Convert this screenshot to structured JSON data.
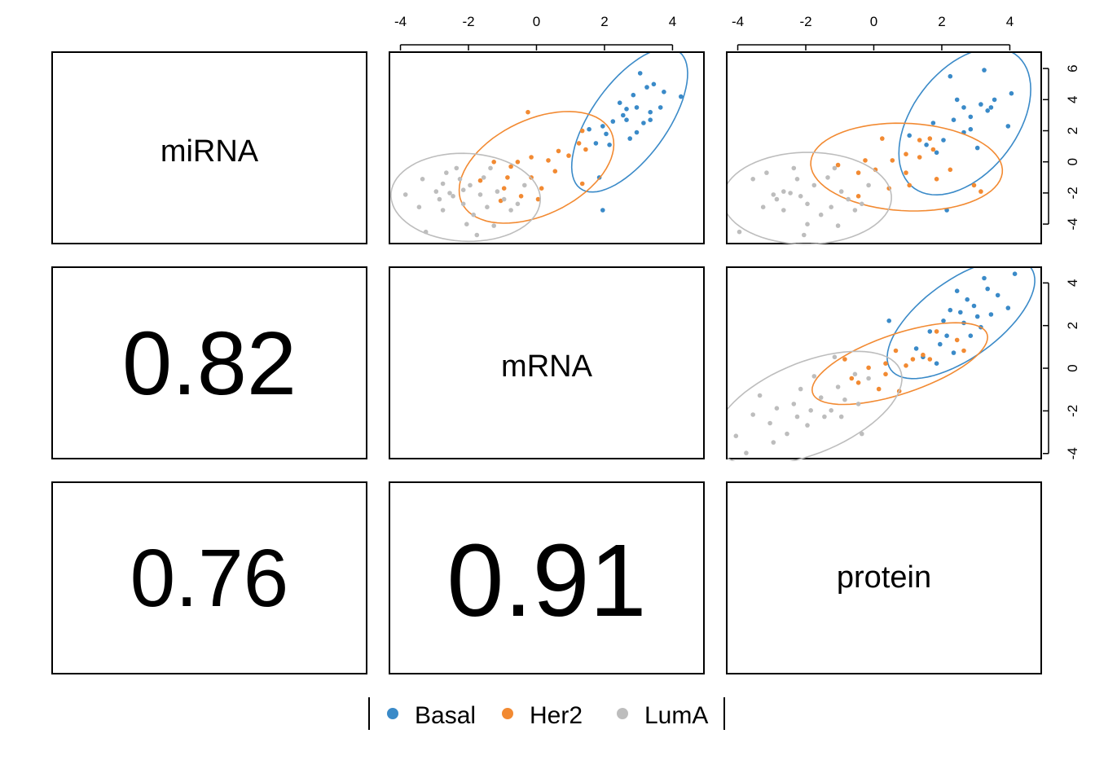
{
  "labels": {
    "mirna": "miRNA",
    "mrna": "mRNA",
    "protein": "protein"
  },
  "correlations": {
    "mirna_mrna": "0.82",
    "mirna_protein": "0.76",
    "mrna_protein": "0.91"
  },
  "legend": {
    "items": [
      {
        "name": "Basal",
        "color": "#3a8ac8"
      },
      {
        "name": "Her2",
        "color": "#f28a32"
      },
      {
        "name": "LumA",
        "color": "#bdbdbd"
      }
    ]
  },
  "chart_data": {
    "type": "scatter",
    "variables": [
      "miRNA",
      "mRNA",
      "protein"
    ],
    "groups": [
      "Basal",
      "Her2",
      "LumA"
    ],
    "group_colors": {
      "Basal": "#3a8ac8",
      "Her2": "#f28a32",
      "LumA": "#bdbdbd"
    },
    "axes": {
      "top_x_ticks": [
        "-4",
        "-2",
        "0",
        "2",
        "4"
      ],
      "right_y_ticks_row1": [
        "6",
        "4",
        "2",
        "0",
        "-2",
        "-4"
      ],
      "right_y_ticks_row2": [
        "4",
        "2",
        "0",
        "-2",
        "-4"
      ],
      "x_range": [
        -4.3,
        4.9
      ],
      "y_range_miRNA": [
        -5.2,
        7.0
      ],
      "y_range_mRNA": [
        -4.2,
        4.7
      ]
    },
    "panels": [
      {
        "x_var": "mRNA",
        "y_var": "miRNA",
        "series": [
          {
            "name": "Basal",
            "points": [
              [
                2.4,
                3.9
              ],
              [
                3.0,
                5.8
              ],
              [
                3.4,
                5.1
              ],
              [
                4.2,
                4.3
              ],
              [
                3.7,
                4.6
              ],
              [
                2.8,
                4.4
              ],
              [
                3.3,
                3.3
              ],
              [
                2.6,
                3.5
              ],
              [
                2.2,
                2.7
              ],
              [
                1.9,
                2.4
              ],
              [
                2.6,
                2.8
              ],
              [
                3.1,
                2.6
              ],
              [
                2.0,
                1.9
              ],
              [
                1.5,
                2.2
              ],
              [
                2.9,
                2.0
              ],
              [
                1.7,
                1.3
              ],
              [
                2.7,
                1.6
              ],
              [
                3.3,
                2.8
              ],
              [
                1.8,
                -0.9
              ],
              [
                1.9,
                -3.0
              ],
              [
                3.6,
                3.6
              ],
              [
                2.5,
                3.1
              ],
              [
                3.2,
                4.9
              ],
              [
                2.9,
                3.6
              ],
              [
                2.1,
                1.2
              ]
            ]
          },
          {
            "name": "Her2",
            "points": [
              [
                -0.3,
                3.3
              ],
              [
                1.3,
                2.1
              ],
              [
                1.2,
                1.3
              ],
              [
                0.6,
                0.8
              ],
              [
                0.3,
                0.2
              ],
              [
                0.9,
                0.5
              ],
              [
                -0.2,
                0.4
              ],
              [
                -0.6,
                0.1
              ],
              [
                -0.8,
                -0.2
              ],
              [
                -1.3,
                0.1
              ],
              [
                -0.2,
                -0.9
              ],
              [
                0.1,
                -1.6
              ],
              [
                0.5,
                -0.5
              ],
              [
                1.3,
                -1.3
              ],
              [
                -1.0,
                -1.6
              ],
              [
                -0.5,
                -2.1
              ],
              [
                0.0,
                -2.3
              ],
              [
                -1.7,
                -1.1
              ],
              [
                -0.9,
                -0.9
              ],
              [
                1.4,
                0.9
              ],
              [
                -1.1,
                -2.4
              ]
            ]
          },
          {
            "name": "LumA",
            "points": [
              [
                -2.7,
                -0.6
              ],
              [
                -3.4,
                -1.0
              ],
              [
                -3.0,
                -1.8
              ],
              [
                -2.5,
                -2.1
              ],
              [
                -2.0,
                -1.4
              ],
              [
                -1.6,
                -0.9
              ],
              [
                -2.2,
                -2.6
              ],
              [
                -1.9,
                -3.3
              ],
              [
                -1.5,
                -2.8
              ],
              [
                -2.8,
                -3.0
              ],
              [
                -3.3,
                -4.4
              ],
              [
                -1.8,
                -4.6
              ],
              [
                -3.9,
                -2.0
              ],
              [
                -2.3,
                -1.0
              ],
              [
                -1.2,
                -1.8
              ],
              [
                -1.0,
                -2.3
              ],
              [
                -0.6,
                -2.6
              ],
              [
                -0.4,
                -1.4
              ],
              [
                -2.6,
                -1.9
              ],
              [
                -2.9,
                -2.3
              ],
              [
                -1.4,
                -0.3
              ],
              [
                -2.1,
                -3.9
              ],
              [
                -1.3,
                -4.0
              ],
              [
                -0.8,
                -3.0
              ],
              [
                -2.4,
                -0.3
              ],
              [
                -3.5,
                -2.8
              ],
              [
                -1.7,
                -2.0
              ],
              [
                -2.8,
                -1.3
              ],
              [
                -2.2,
                -1.7
              ]
            ]
          }
        ]
      },
      {
        "x_var": "protein",
        "y_var": "miRNA",
        "series": [
          {
            "name": "Basal",
            "points": [
              [
                2.2,
                5.6
              ],
              [
                3.2,
                6.0
              ],
              [
                4.0,
                4.5
              ],
              [
                3.5,
                4.1
              ],
              [
                3.1,
                3.8
              ],
              [
                2.6,
                3.6
              ],
              [
                2.8,
                3.0
              ],
              [
                3.3,
                3.4
              ],
              [
                2.3,
                2.8
              ],
              [
                1.7,
                2.6
              ],
              [
                2.0,
                1.5
              ],
              [
                1.5,
                1.2
              ],
              [
                2.6,
                2.0
              ],
              [
                3.0,
                1.0
              ],
              [
                3.9,
                2.4
              ],
              [
                1.0,
                1.8
              ],
              [
                2.1,
                -3.0
              ],
              [
                2.4,
                4.1
              ],
              [
                3.4,
                3.6
              ],
              [
                2.8,
                2.2
              ],
              [
                1.8,
                0.7
              ]
            ]
          },
          {
            "name": "Her2",
            "points": [
              [
                0.2,
                1.6
              ],
              [
                1.3,
                1.5
              ],
              [
                1.7,
                0.9
              ],
              [
                0.9,
                0.6
              ],
              [
                0.5,
                0.2
              ],
              [
                -0.3,
                0.2
              ],
              [
                -0.5,
                -0.6
              ],
              [
                -1.1,
                -0.1
              ],
              [
                0.9,
                -0.6
              ],
              [
                1.8,
                -1.0
              ],
              [
                2.9,
                -1.4
              ],
              [
                3.1,
                -1.8
              ],
              [
                0.4,
                -1.6
              ],
              [
                -0.5,
                -2.1
              ],
              [
                1.3,
                0.4
              ],
              [
                2.2,
                -0.4
              ],
              [
                1.6,
                1.6
              ],
              [
                0.0,
                -0.4
              ],
              [
                1.0,
                -1.4
              ]
            ]
          },
          {
            "name": "LumA",
            "points": [
              [
                -3.2,
                -0.6
              ],
              [
                -3.6,
                -1.0
              ],
              [
                -2.7,
                -1.8
              ],
              [
                -2.2,
                -2.1
              ],
              [
                -1.8,
                -1.4
              ],
              [
                -1.4,
                -0.9
              ],
              [
                -2.0,
                -2.6
              ],
              [
                -1.6,
                -3.3
              ],
              [
                -1.3,
                -2.8
              ],
              [
                -2.7,
                -3.0
              ],
              [
                -4.0,
                -4.4
              ],
              [
                -2.1,
                -4.6
              ],
              [
                -3.0,
                -2.0
              ],
              [
                -2.3,
                -1.0
              ],
              [
                -1.0,
                -1.8
              ],
              [
                -0.8,
                -2.3
              ],
              [
                -0.4,
                -2.6
              ],
              [
                -0.2,
                -1.4
              ],
              [
                -2.5,
                -1.9
              ],
              [
                -2.9,
                -2.3
              ],
              [
                -1.2,
                -0.3
              ],
              [
                -2.0,
                -3.9
              ],
              [
                -1.1,
                -4.0
              ],
              [
                -0.6,
                -3.0
              ],
              [
                -2.4,
                -0.3
              ],
              [
                -3.3,
                -2.8
              ]
            ]
          }
        ]
      },
      {
        "x_var": "protein",
        "y_var": "mRNA",
        "series": [
          {
            "name": "Basal",
            "points": [
              [
                4.1,
                4.5
              ],
              [
                3.2,
                4.3
              ],
              [
                2.4,
                3.7
              ],
              [
                3.6,
                3.5
              ],
              [
                2.9,
                3.0
              ],
              [
                2.2,
                2.8
              ],
              [
                3.4,
                2.6
              ],
              [
                3.9,
                2.9
              ],
              [
                2.6,
                2.2
              ],
              [
                2.0,
                2.3
              ],
              [
                1.6,
                1.8
              ],
              [
                2.8,
                1.6
              ],
              [
                1.9,
                1.2
              ],
              [
                2.3,
                0.8
              ],
              [
                1.2,
                1.0
              ],
              [
                1.4,
                0.6
              ],
              [
                0.4,
                2.3
              ],
              [
                3.1,
                2.0
              ],
              [
                2.7,
                3.3
              ],
              [
                3.0,
                2.5
              ],
              [
                2.1,
                1.6
              ],
              [
                1.8,
                0.3
              ],
              [
                3.3,
                3.8
              ],
              [
                2.5,
                2.7
              ]
            ]
          },
          {
            "name": "Her2",
            "points": [
              [
                1.8,
                1.8
              ],
              [
                2.4,
                1.4
              ],
              [
                1.1,
                0.5
              ],
              [
                1.4,
                0.7
              ],
              [
                0.6,
                0.9
              ],
              [
                -0.2,
                0.1
              ],
              [
                0.3,
                -0.2
              ],
              [
                -0.7,
                -0.4
              ],
              [
                0.9,
                0.2
              ],
              [
                1.6,
                0.5
              ],
              [
                2.6,
                0.9
              ],
              [
                -0.9,
                0.5
              ],
              [
                0.3,
                0.3
              ],
              [
                0.7,
                -1.0
              ],
              [
                -0.5,
                -0.6
              ],
              [
                0.1,
                -0.9
              ]
            ]
          },
          {
            "name": "LumA",
            "points": [
              [
                -1.2,
                0.6
              ],
              [
                -1.8,
                -0.3
              ],
              [
                -1.1,
                -0.8
              ],
              [
                -0.6,
                -0.2
              ],
              [
                -0.2,
                -0.4
              ],
              [
                -2.2,
                -0.9
              ],
              [
                -1.6,
                -1.3
              ],
              [
                -1.3,
                -1.9
              ],
              [
                -2.4,
                -1.6
              ],
              [
                -2.9,
                -1.8
              ],
              [
                -3.1,
                -2.5
              ],
              [
                -3.6,
                -2.1
              ],
              [
                -2.0,
                -2.6
              ],
              [
                -1.5,
                -2.2
              ],
              [
                -0.9,
                -1.4
              ],
              [
                -0.5,
                -1.6
              ],
              [
                -2.6,
                -3.0
              ],
              [
                -4.1,
                -3.1
              ],
              [
                -3.0,
                -3.4
              ],
              [
                -3.8,
                -3.9
              ],
              [
                -1.0,
                -2.2
              ],
              [
                -1.9,
                -1.9
              ],
              [
                -2.3,
                -2.2
              ],
              [
                -3.4,
                -1.2
              ],
              [
                -0.4,
                -3.0
              ]
            ]
          }
        ]
      }
    ],
    "ellipses_note": "95% data ellipses per group"
  }
}
